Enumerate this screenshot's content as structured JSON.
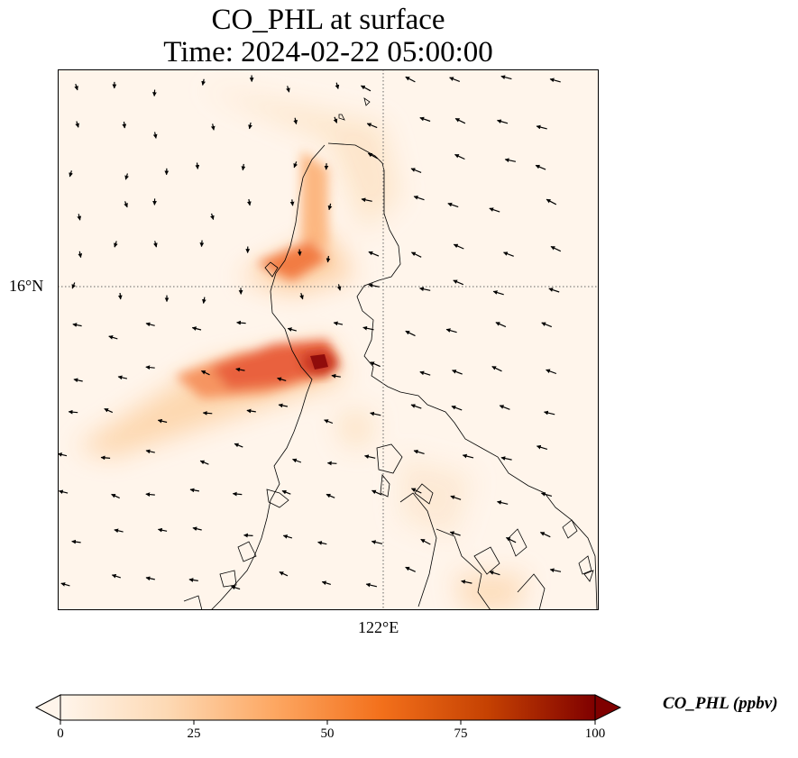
{
  "title": {
    "line1": "CO_PHL at surface",
    "line2": "Time: 2024-02-22 05:00:00"
  },
  "axes": {
    "lat_label": "16°N",
    "lon_label": "122°E"
  },
  "colorbar": {
    "label": "CO_PHL (ppbv)",
    "ticks": [
      "0",
      "25",
      "50",
      "75",
      "100"
    ],
    "min": 0,
    "max": 100,
    "extend": "both",
    "colors": [
      "#fff5eb",
      "#fdd9b4",
      "#fda762",
      "#f3701b",
      "#c54102",
      "#7f0000"
    ]
  },
  "colors": {
    "background": "#fff5eb",
    "coastline": "#000000",
    "gridline": "#666666",
    "wind_arrow": "#000000"
  }
}
